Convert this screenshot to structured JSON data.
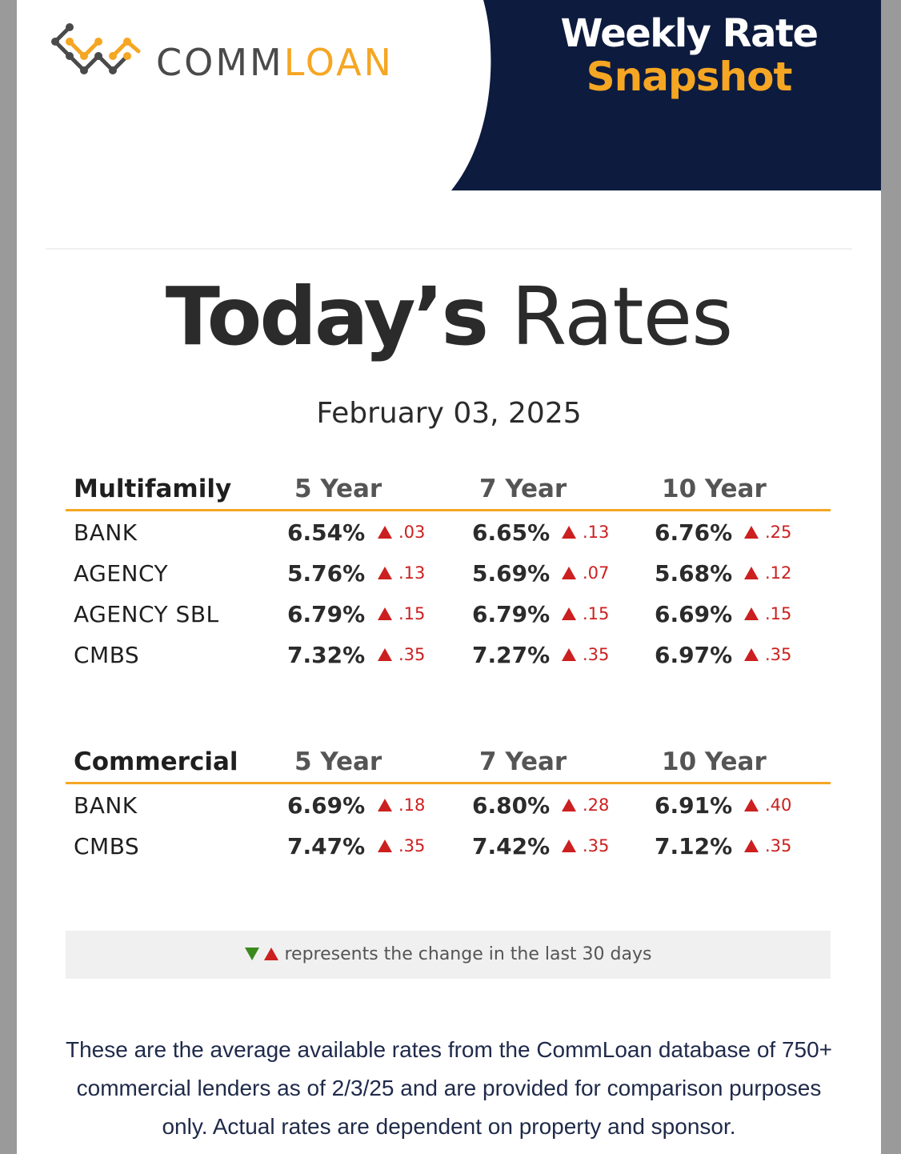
{
  "brand": {
    "logo_comm": "COMM",
    "logo_loan": "LOAN",
    "orange": "#f5a623",
    "navy": "#0d1b3e"
  },
  "badge": {
    "line1": "Weekly Rate",
    "line2": "Snapshot"
  },
  "title": {
    "bold": "Today’s",
    "light": "Rates"
  },
  "date": "February 03, 2025",
  "columns": [
    "5 Year",
    "7 Year",
    "10 Year"
  ],
  "multifamily": {
    "heading": "Multifamily",
    "rows": [
      {
        "label": "BANK",
        "r5": "6.54%",
        "c5": ".03",
        "r7": "6.65%",
        "c7": ".13",
        "r10": "6.76%",
        "c10": ".25"
      },
      {
        "label": "AGENCY",
        "r5": "5.76%",
        "c5": ".13",
        "r7": "5.69%",
        "c7": ".07",
        "r10": "5.68%",
        "c10": ".12"
      },
      {
        "label": "AGENCY SBL",
        "r5": "6.79%",
        "c5": ".15",
        "r7": "6.79%",
        "c7": ".15",
        "r10": "6.69%",
        "c10": ".15"
      },
      {
        "label": "CMBS",
        "r5": "7.32%",
        "c5": ".35",
        "r7": "7.27%",
        "c7": ".35",
        "r10": "6.97%",
        "c10": ".35"
      }
    ]
  },
  "commercial": {
    "heading": "Commercial",
    "rows": [
      {
        "label": "BANK",
        "r5": "6.69%",
        "c5": ".18",
        "r7": "6.80%",
        "c7": ".28",
        "r10": "6.91%",
        "c10": ".40"
      },
      {
        "label": "CMBS",
        "r5": "7.47%",
        "c5": ".35",
        "r7": "7.42%",
        "c7": ".35",
        "r10": "7.12%",
        "c10": ".35"
      }
    ]
  },
  "legend": {
    "text": "represents the change in the last 30 days",
    "up_icon": "triangle-up-icon",
    "down_icon": "triangle-down-icon",
    "up_color": "#cc1f1f",
    "down_color": "#3a8a1e"
  },
  "footer": {
    "line1": "These are the average available rates from the CommLoan database of 750+",
    "line2": "commercial lenders as of 2/3/25 and are provided for comparison purposes",
    "line3": "only. Actual rates are dependent on property and sponsor."
  }
}
